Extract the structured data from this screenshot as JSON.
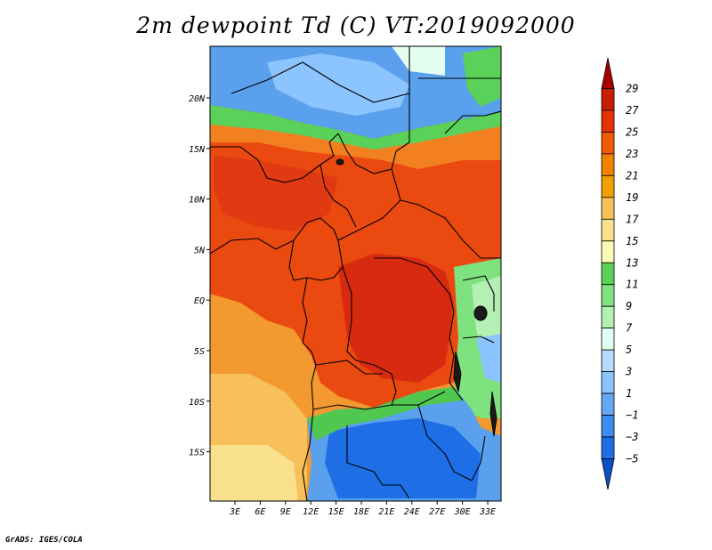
{
  "title": "2m dewpoint Td (C) VT:2019092000",
  "credit": "GrADS: IGES/COLA",
  "map": {
    "lon_ticks": [
      "3E",
      "6E",
      "9E",
      "12E",
      "15E",
      "18E",
      "21E",
      "24E",
      "27E",
      "30E",
      "33E"
    ],
    "lat_ticks": [
      "20N",
      "15N",
      "10N",
      "5N",
      "EQ",
      "5S",
      "10S",
      "15S"
    ]
  },
  "colorbar": {
    "labels": [
      "29",
      "27",
      "25",
      "23",
      "21",
      "19",
      "17",
      "15",
      "13",
      "11",
      "9",
      "7",
      "5",
      "3",
      "1",
      "−1",
      "−3",
      "−5"
    ],
    "colors": [
      "#a80000",
      "#c81e00",
      "#e63200",
      "#f05a00",
      "#f08200",
      "#f0a000",
      "#f7c05a",
      "#f8e08c",
      "#fff8b4",
      "#5ad25a",
      "#7ee27e",
      "#b4f0b4",
      "#e4fff0",
      "#b4dcff",
      "#8cc4ff",
      "#64a8f5",
      "#3c8cf0",
      "#1e6ee6",
      "#0a50c8"
    ]
  },
  "colors": {
    "ocean": "#f07a10",
    "saharan_dry": "#5aa0ec",
    "southern_dry": "#1e6ee6",
    "humid_core": "#e63c14",
    "moderate": "#f0a030",
    "green_band": "#50c850",
    "border": "#000000"
  }
}
